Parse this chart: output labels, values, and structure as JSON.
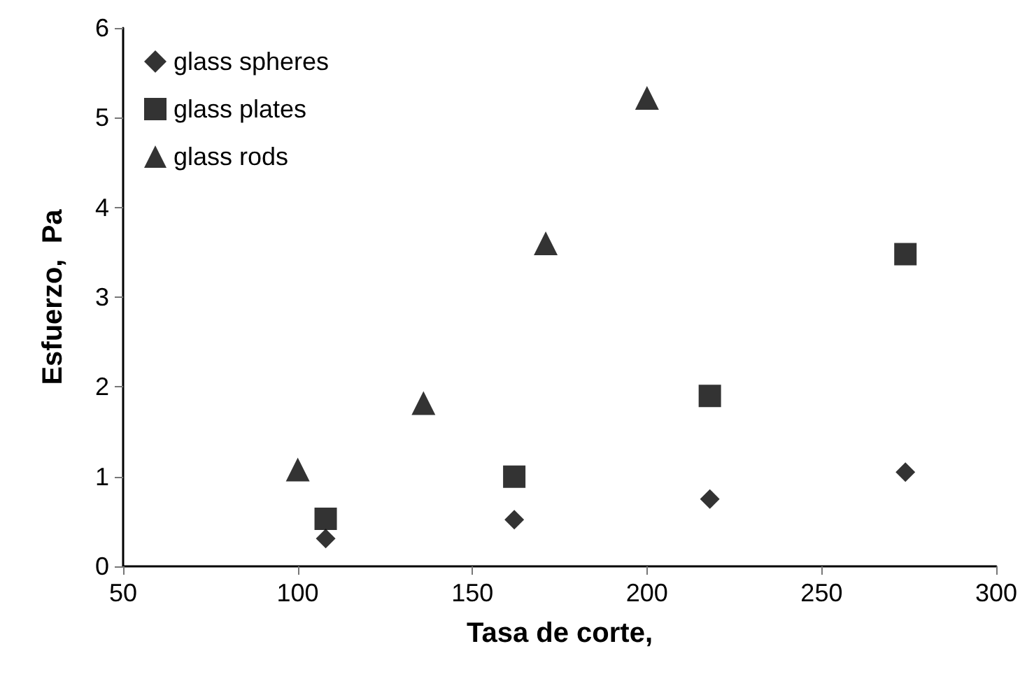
{
  "chart_data": {
    "type": "scatter",
    "xlabel": "Tasa de corte,",
    "ylabel": "Esfuerzo,  Pa",
    "xlim": [
      50,
      300
    ],
    "xticks": [
      50,
      100,
      150,
      200,
      250,
      300
    ],
    "ylim": [
      0,
      6
    ],
    "yticks": [
      0,
      1,
      2,
      3,
      4,
      5,
      6
    ],
    "grid": false,
    "legend": "top left",
    "series": [
      {
        "name": "glass spheres",
        "color": "#000000",
        "marker": "diamond",
        "x": [
          108,
          162,
          218,
          274
        ],
        "values": [
          0.31,
          0.52,
          0.75,
          1.05
        ]
      },
      {
        "name": "glass plates",
        "color": "#000000",
        "marker": "square",
        "x": [
          108,
          162,
          218,
          274
        ],
        "values": [
          0.53,
          1.0,
          1.9,
          3.48
        ]
      },
      {
        "name": "glass rods",
        "color": "#000000",
        "marker": "triangle",
        "x": [
          100,
          136,
          171,
          200
        ],
        "values": [
          1.08,
          1.82,
          3.6,
          5.22
        ]
      }
    ]
  }
}
